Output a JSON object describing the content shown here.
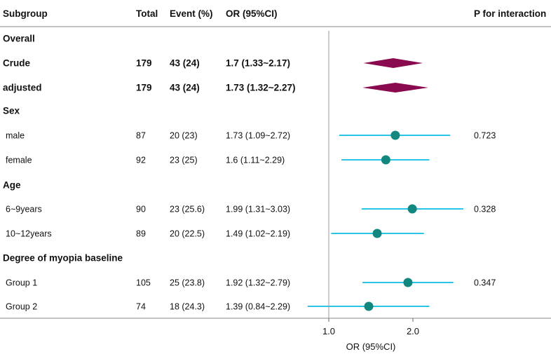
{
  "chart_data": {
    "type": "forest",
    "columns": [
      "Subgroup",
      "Total",
      "Event (%)",
      "OR (95%CI)",
      "P for interaction"
    ],
    "rows": [
      {
        "kind": "header",
        "label": "Overall"
      },
      {
        "kind": "summary",
        "label": "Crude",
        "total": "179",
        "event": "43 (24)",
        "or_text": "1.7 (1.33~2.17)",
        "or": 1.7,
        "lower": 1.33,
        "upper": 2.17,
        "p": ""
      },
      {
        "kind": "summary",
        "label": "adjusted",
        "total": "179",
        "event": "43 (24)",
        "or_text": "1.73 (1.32~2.27)",
        "or": 1.73,
        "lower": 1.32,
        "upper": 2.27,
        "p": ""
      },
      {
        "kind": "header",
        "label": "Sex"
      },
      {
        "kind": "point",
        "label": "male",
        "total": "87",
        "event": "20 (23)",
        "or_text": "1.73 (1.09~2.72)",
        "or": 1.73,
        "lower": 1.09,
        "upper": 2.72,
        "p": "0.723"
      },
      {
        "kind": "point",
        "label": "female",
        "total": "92",
        "event": "23 (25)",
        "or_text": "1.6 (1.11~2.29)",
        "or": 1.6,
        "lower": 1.11,
        "upper": 2.29,
        "p": ""
      },
      {
        "kind": "header",
        "label": "Age"
      },
      {
        "kind": "point",
        "label": "6~9years",
        "total": "90",
        "event": "23 (25.6)",
        "or_text": "1.99 (1.31~3.03)",
        "or": 1.99,
        "lower": 1.31,
        "upper": 3.03,
        "p": "0.328"
      },
      {
        "kind": "point",
        "label": "10~12years",
        "total": "89",
        "event": "20 (22.5)",
        "or_text": "1.49 (1.02~2.19)",
        "or": 1.49,
        "lower": 1.02,
        "upper": 2.19,
        "p": ""
      },
      {
        "kind": "header",
        "label": "Degree of myopia baseline"
      },
      {
        "kind": "point",
        "label": "Group 1",
        "total": "105",
        "event": "25 (23.8)",
        "or_text": "1.92 (1.32~2.79)",
        "or": 1.92,
        "lower": 1.32,
        "upper": 2.79,
        "p": "0.347"
      },
      {
        "kind": "point",
        "label": "Group 2",
        "total": "74",
        "event": "18 (24.3)",
        "or_text": "1.39 (0.84~2.29)",
        "or": 1.39,
        "lower": 0.84,
        "upper": 2.29,
        "p": ""
      }
    ],
    "xaxis": {
      "label": "OR (95%CI)",
      "ticks": [
        "1.0",
        "2.0"
      ],
      "reference": 1.0,
      "scale": "log"
    },
    "colors": {
      "point": "#12877f",
      "ci": "#29c4e6",
      "summary": "#8a0a4f",
      "reference": "#999999",
      "rule": "#888888"
    }
  }
}
